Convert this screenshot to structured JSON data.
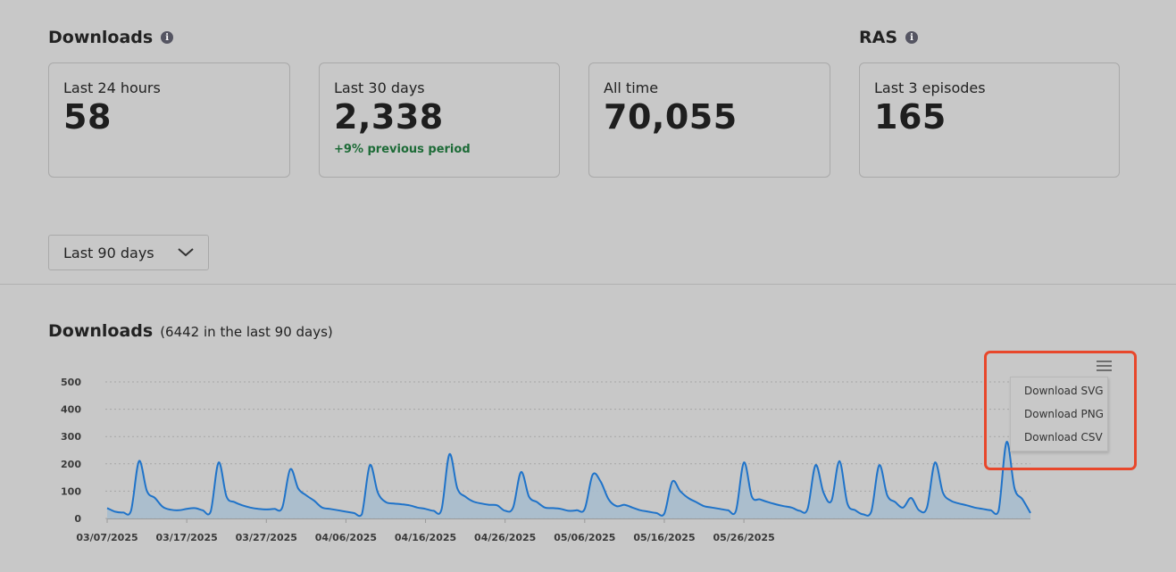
{
  "downloads_section": {
    "title": "Downloads",
    "info": "i"
  },
  "ras_section": {
    "title": "RAS",
    "info": "i"
  },
  "cards": [
    {
      "label": "Last 24 hours",
      "value": "58",
      "change": ""
    },
    {
      "label": "Last 30 days",
      "value": "2,338",
      "change": "+9% previous period"
    },
    {
      "label": "All time",
      "value": "70,055",
      "change": ""
    },
    {
      "label": "Last 3 episodes",
      "value": "165",
      "change": ""
    }
  ],
  "range_select": {
    "value": "Last 90 days"
  },
  "chart_header": {
    "title": "Downloads",
    "subtitle": "(6442 in the last 90 days)"
  },
  "export_menu": {
    "items": [
      "Download SVG",
      "Download PNG",
      "Download CSV"
    ]
  },
  "colors": {
    "line": "#1f73c9",
    "area": "#a7bccd",
    "change_positive": "#1d6b37",
    "highlight": "#e8472b"
  },
  "chart_data": {
    "type": "area",
    "title": "",
    "xlabel": "",
    "ylabel": "",
    "ylim": [
      0,
      500
    ],
    "yticks": [
      0,
      100,
      200,
      300,
      400,
      500
    ],
    "xtick_labels": [
      "03/07/2025",
      "03/17/2025",
      "03/27/2025",
      "04/06/2025",
      "04/16/2025",
      "04/26/2025",
      "05/06/2025",
      "05/16/2025",
      "05/26/2025"
    ],
    "start_date": "03/07/2025",
    "grid": true,
    "legend": "none",
    "values": [
      38,
      25,
      22,
      28,
      210,
      100,
      75,
      42,
      32,
      30,
      35,
      38,
      30,
      25,
      205,
      80,
      60,
      48,
      40,
      35,
      33,
      35,
      40,
      180,
      110,
      85,
      65,
      40,
      35,
      30,
      25,
      20,
      15,
      195,
      95,
      60,
      55,
      52,
      48,
      40,
      35,
      28,
      32,
      235,
      110,
      80,
      62,
      55,
      50,
      48,
      28,
      40,
      170,
      80,
      60,
      40,
      38,
      35,
      28,
      30,
      35,
      160,
      135,
      70,
      45,
      50,
      40,
      30,
      25,
      20,
      18,
      135,
      100,
      75,
      60,
      45,
      40,
      35,
      30,
      28,
      205,
      80,
      70,
      60,
      52,
      45,
      40,
      28,
      35,
      195,
      95,
      65,
      210,
      55,
      30,
      15,
      25,
      195,
      85,
      60,
      40,
      75,
      30,
      40,
      205,
      95,
      65,
      55,
      48,
      40,
      35,
      30,
      28,
      280,
      110,
      70,
      20
    ]
  }
}
